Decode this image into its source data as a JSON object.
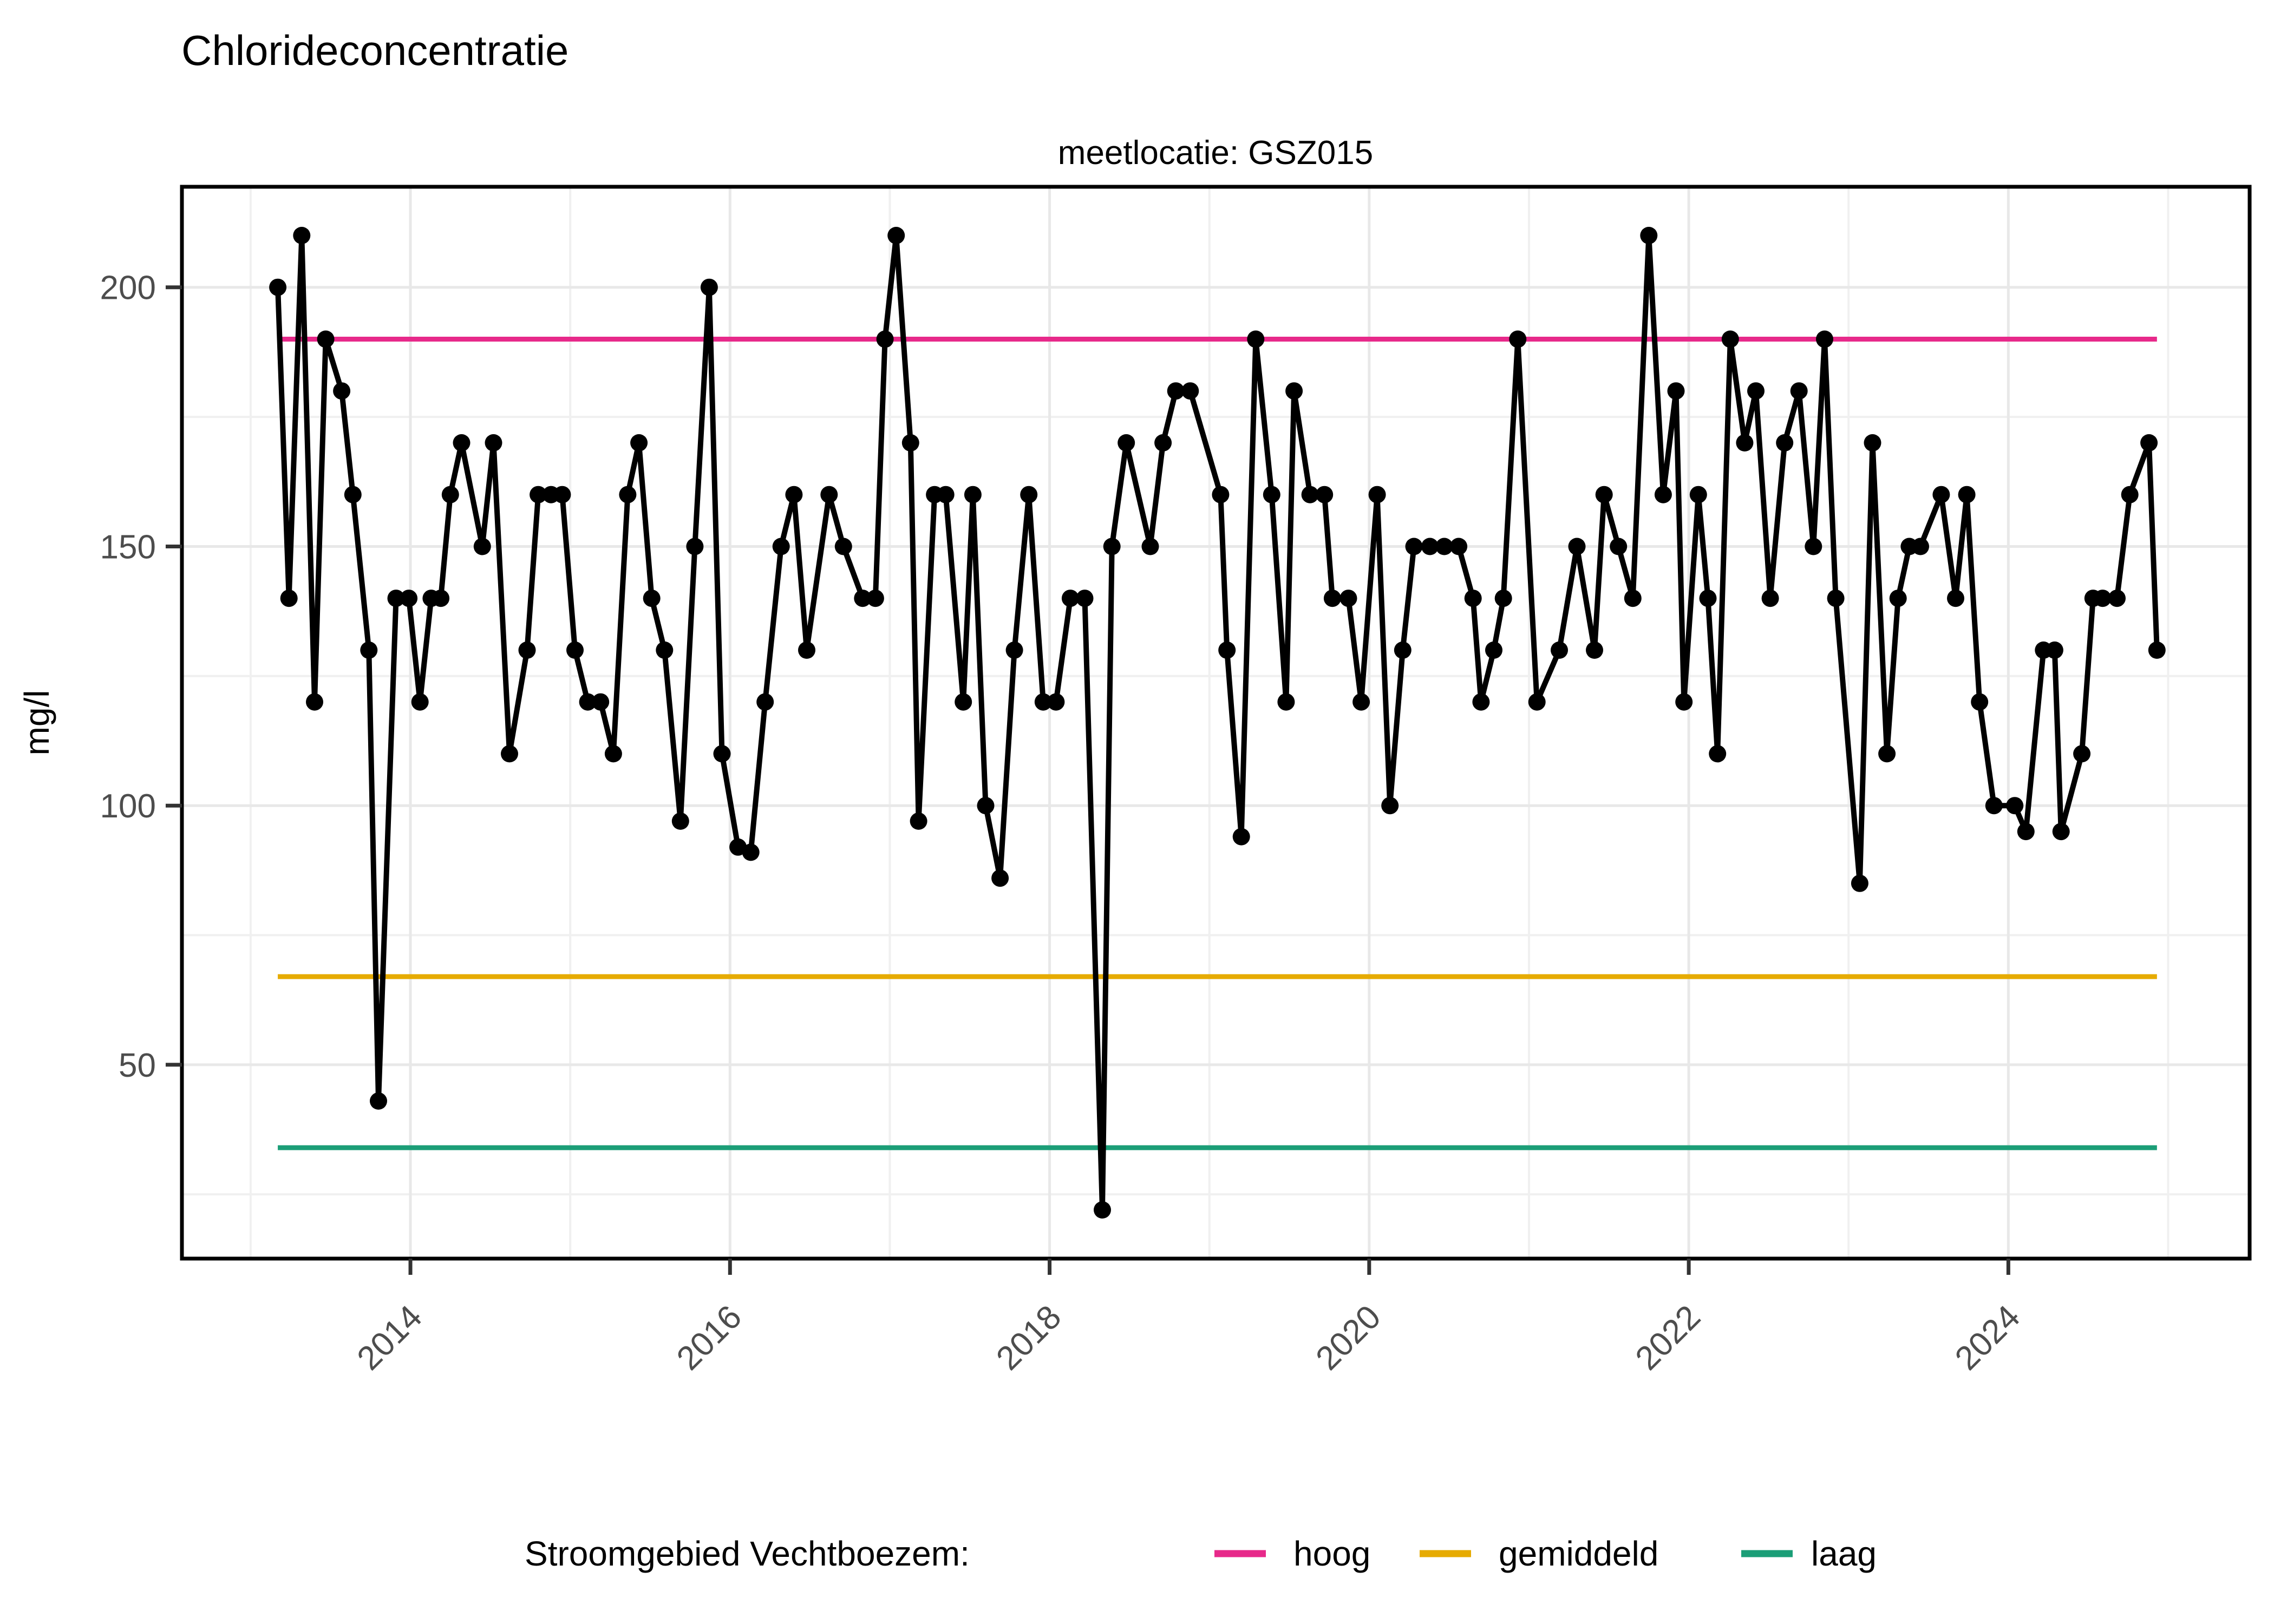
{
  "title": "Chlorideconcentratie",
  "subtitle": "meetlocatie: GSZ015",
  "legend": {
    "title": "Stroomgebied Vechtboezem:",
    "items": [
      {
        "label": "hoog",
        "color": "#E7298A"
      },
      {
        "label": "gemiddeld",
        "color": "#E6AB02"
      },
      {
        "label": "laag",
        "color": "#1B9E77"
      }
    ]
  },
  "chart_data": {
    "type": "line",
    "title": "Chlorideconcentratie",
    "subtitle": "meetlocatie: GSZ015",
    "xlabel": "",
    "ylabel": "mg/l",
    "x_ticks": [
      2014,
      2016,
      2018,
      2020,
      2022,
      2024
    ],
    "x_minor_ticks": [
      2013,
      2015,
      2017,
      2019,
      2021,
      2023,
      2025
    ],
    "y_ticks": [
      50,
      100,
      150,
      200
    ],
    "y_minor_ticks": [
      25,
      75,
      125,
      175
    ],
    "xlim": [
      2012.57,
      2025.51
    ],
    "ylim": [
      12.6,
      219.4
    ],
    "grid": true,
    "legend_position": "bottom",
    "line_color": "#000000",
    "reference_lines": [
      {
        "name": "hoog",
        "value": 190,
        "color": "#E7298A"
      },
      {
        "name": "gemiddeld",
        "value": 67,
        "color": "#E6AB02"
      },
      {
        "name": "laag",
        "value": 34,
        "color": "#1B9E77"
      }
    ],
    "series": [
      {
        "name": "chloride GSZ015",
        "color": "#000000",
        "points": [
          [
            2013.17,
            200
          ],
          [
            2013.24,
            140
          ],
          [
            2013.32,
            210
          ],
          [
            2013.4,
            120
          ],
          [
            2013.47,
            190
          ],
          [
            2013.57,
            180
          ],
          [
            2013.64,
            160
          ],
          [
            2013.74,
            130
          ],
          [
            2013.8,
            43
          ],
          [
            2013.91,
            140
          ],
          [
            2013.99,
            140
          ],
          [
            2014.06,
            120
          ],
          [
            2014.13,
            140
          ],
          [
            2014.19,
            140
          ],
          [
            2014.25,
            160
          ],
          [
            2014.32,
            170
          ],
          [
            2014.45,
            150
          ],
          [
            2014.52,
            170
          ],
          [
            2014.62,
            110
          ],
          [
            2014.73,
            130
          ],
          [
            2014.8,
            160
          ],
          [
            2014.88,
            160
          ],
          [
            2014.95,
            160
          ],
          [
            2015.03,
            130
          ],
          [
            2015.11,
            120
          ],
          [
            2015.19,
            120
          ],
          [
            2015.27,
            110
          ],
          [
            2015.36,
            160
          ],
          [
            2015.43,
            170
          ],
          [
            2015.51,
            140
          ],
          [
            2015.59,
            130
          ],
          [
            2015.69,
            97
          ],
          [
            2015.78,
            150
          ],
          [
            2015.87,
            200
          ],
          [
            2015.95,
            110
          ],
          [
            2016.05,
            92
          ],
          [
            2016.13,
            91
          ],
          [
            2016.22,
            120
          ],
          [
            2016.32,
            150
          ],
          [
            2016.4,
            160
          ],
          [
            2016.48,
            130
          ],
          [
            2016.62,
            160
          ],
          [
            2016.71,
            150
          ],
          [
            2016.83,
            140
          ],
          [
            2016.91,
            140
          ],
          [
            2016.97,
            190
          ],
          [
            2017.04,
            210
          ],
          [
            2017.13,
            170
          ],
          [
            2017.18,
            97
          ],
          [
            2017.28,
            160
          ],
          [
            2017.35,
            160
          ],
          [
            2017.46,
            120
          ],
          [
            2017.52,
            160
          ],
          [
            2017.6,
            100
          ],
          [
            2017.69,
            86
          ],
          [
            2017.78,
            130
          ],
          [
            2017.87,
            160
          ],
          [
            2017.96,
            120
          ],
          [
            2018.04,
            120
          ],
          [
            2018.13,
            140
          ],
          [
            2018.22,
            140
          ],
          [
            2018.33,
            22
          ],
          [
            2018.39,
            150
          ],
          [
            2018.48,
            170
          ],
          [
            2018.63,
            150
          ],
          [
            2018.71,
            170
          ],
          [
            2018.79,
            180
          ],
          [
            2018.88,
            180
          ],
          [
            2019.07,
            160
          ],
          [
            2019.11,
            130
          ],
          [
            2019.2,
            94
          ],
          [
            2019.29,
            190
          ],
          [
            2019.39,
            160
          ],
          [
            2019.48,
            120
          ],
          [
            2019.53,
            180
          ],
          [
            2019.63,
            160
          ],
          [
            2019.72,
            160
          ],
          [
            2019.77,
            140
          ],
          [
            2019.87,
            140
          ],
          [
            2019.95,
            120
          ],
          [
            2020.05,
            160
          ],
          [
            2020.13,
            100
          ],
          [
            2020.21,
            130
          ],
          [
            2020.28,
            150
          ],
          [
            2020.38,
            150
          ],
          [
            2020.47,
            150
          ],
          [
            2020.56,
            150
          ],
          [
            2020.65,
            140
          ],
          [
            2020.7,
            120
          ],
          [
            2020.78,
            130
          ],
          [
            2020.84,
            140
          ],
          [
            2020.93,
            190
          ],
          [
            2021.05,
            120
          ],
          [
            2021.19,
            130
          ],
          [
            2021.3,
            150
          ],
          [
            2021.41,
            130
          ],
          [
            2021.47,
            160
          ],
          [
            2021.56,
            150
          ],
          [
            2021.65,
            140
          ],
          [
            2021.75,
            210
          ],
          [
            2021.84,
            160
          ],
          [
            2021.92,
            180
          ],
          [
            2021.97,
            120
          ],
          [
            2022.06,
            160
          ],
          [
            2022.12,
            140
          ],
          [
            2022.18,
            110
          ],
          [
            2022.26,
            190
          ],
          [
            2022.35,
            170
          ],
          [
            2022.42,
            180
          ],
          [
            2022.51,
            140
          ],
          [
            2022.6,
            170
          ],
          [
            2022.69,
            180
          ],
          [
            2022.78,
            150
          ],
          [
            2022.85,
            190
          ],
          [
            2022.92,
            140
          ],
          [
            2023.07,
            85
          ],
          [
            2023.15,
            170
          ],
          [
            2023.24,
            110
          ],
          [
            2023.31,
            140
          ],
          [
            2023.38,
            150
          ],
          [
            2023.45,
            150
          ],
          [
            2023.58,
            160
          ],
          [
            2023.67,
            140
          ],
          [
            2023.74,
            160
          ],
          [
            2023.82,
            120
          ],
          [
            2023.91,
            100
          ],
          [
            2024.04,
            100
          ],
          [
            2024.11,
            95
          ],
          [
            2024.22,
            130
          ],
          [
            2024.29,
            130
          ],
          [
            2024.33,
            95
          ],
          [
            2024.46,
            110
          ],
          [
            2024.53,
            140
          ],
          [
            2024.59,
            140
          ],
          [
            2024.68,
            140
          ],
          [
            2024.76,
            160
          ],
          [
            2024.88,
            170
          ],
          [
            2024.93,
            130
          ]
        ]
      }
    ]
  }
}
